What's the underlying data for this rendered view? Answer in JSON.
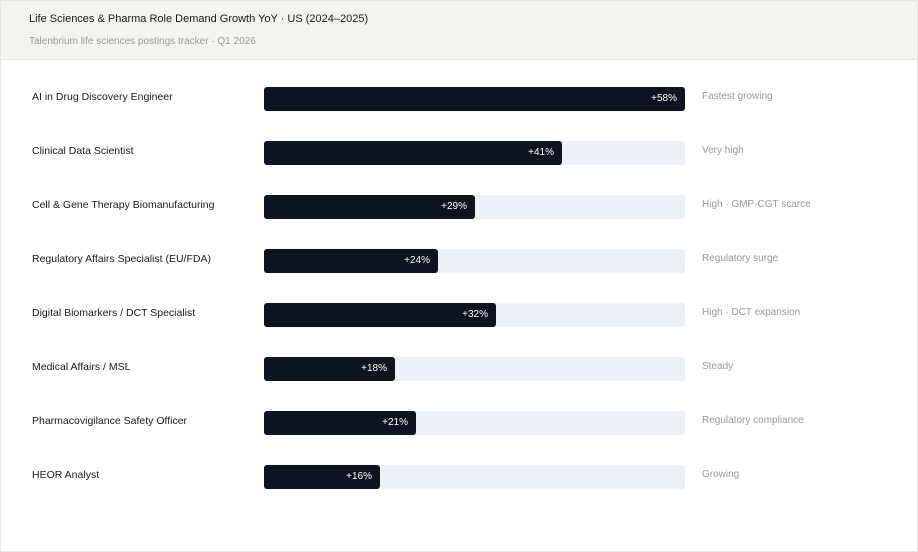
{
  "header": {
    "title": "Life Sciences & Pharma Role Demand Growth YoY · US (2024–2025)",
    "subtitle": "Talenbrium life sciences postings tracker · Q1 2026"
  },
  "colors": {
    "bar": "#0e1322",
    "track": "#edf0f7",
    "header_bg": "#f4f3ef"
  },
  "chart_data": {
    "type": "bar",
    "orientation": "horizontal",
    "title": "Life Sciences & Pharma Role Demand Growth YoY · US (2024–2025)",
    "subtitle": "Talenbrium life sciences postings tracker · Q1 2026",
    "xlim": [
      0,
      58
    ],
    "grid": false,
    "categories": [
      "AI in Drug Discovery Engineer",
      "Clinical Data Scientist",
      "Cell & Gene Therapy Biomanufacturing",
      "Regulatory Affairs Specialist (EU/FDA)",
      "Digital Biomarkers / DCT Specialist",
      "Medical Affairs / MSL",
      "Pharmacovigilance Safety Officer",
      "HEOR Analyst"
    ],
    "values": [
      58,
      41,
      29,
      24,
      32,
      18,
      21,
      16
    ],
    "value_labels": [
      "+58%",
      "+41%",
      "+29%",
      "+24%",
      "+32%",
      "+18%",
      "+21%",
      "+16%"
    ],
    "annotations": [
      "Fastest growing",
      "Very high",
      "High · GMP-CGT scarce",
      "Regulatory surge",
      "High · DCT expansion",
      "Steady",
      "Regulatory compliance",
      "Growing"
    ]
  }
}
